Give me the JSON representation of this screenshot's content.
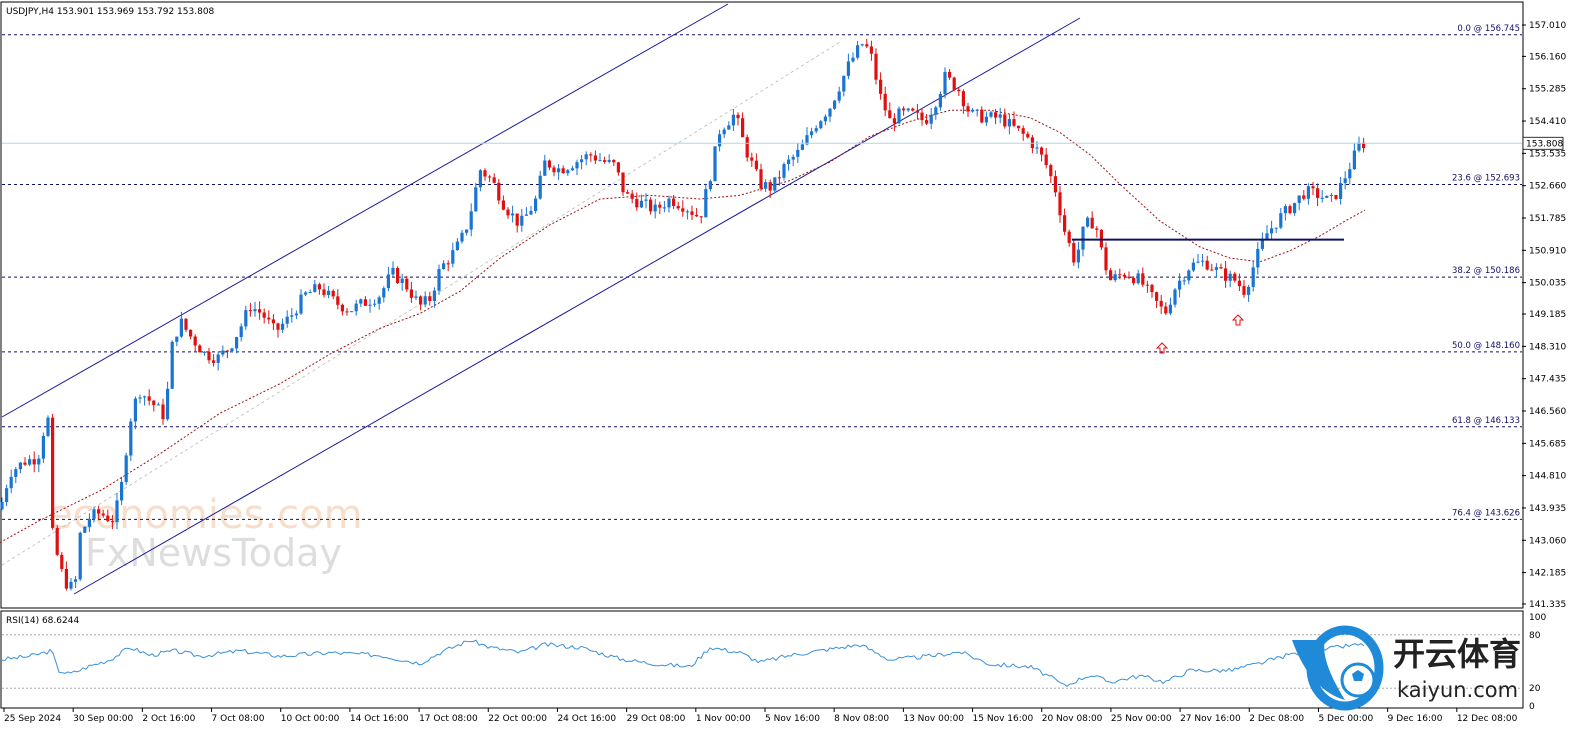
{
  "header": {
    "symbol_line": "USDJPY,H4  153.901 153.969 153.792 153.808"
  },
  "rsi": {
    "title": "RSI(14) 68.6244",
    "levels": [
      "100",
      "80",
      "20",
      "0"
    ]
  },
  "watermark": {
    "line1": "economies.com",
    "line2": "FxNewsToday"
  },
  "logo": {
    "cn": "开云体育",
    "en": "kaiyun.com"
  },
  "colors": {
    "bull": "#1a74d2",
    "bear": "#e01010",
    "channel": "#1a1a9a",
    "ma": "#a01010",
    "fib": "#111166",
    "rsi": "#3a8fd8",
    "price_line": "#a8d8e8"
  },
  "chart_data": {
    "type": "candlestick",
    "symbol": "USDJPY",
    "timeframe": "H4",
    "ohlc_last": {
      "open": 153.901,
      "high": 153.969,
      "low": 153.792,
      "close": 153.808
    },
    "current_price": "153.808",
    "ylim": [
      141.335,
      157.01
    ],
    "y_ticks": [
      "157.010",
      "156.160",
      "155.285",
      "154.410",
      "153.535",
      "152.660",
      "151.785",
      "150.910",
      "150.035",
      "149.185",
      "148.310",
      "147.435",
      "146.560",
      "145.685",
      "144.810",
      "143.935",
      "143.060",
      "142.185",
      "141.335"
    ],
    "x_ticks": [
      "25 Sep 2024",
      "30 Sep 00:00",
      "2 Oct 16:00",
      "7 Oct 08:00",
      "10 Oct 00:00",
      "14 Oct 16:00",
      "17 Oct 08:00",
      "22 Oct 00:00",
      "24 Oct 16:00",
      "29 Oct 08:00",
      "1 Nov 00:00",
      "5 Nov 16:00",
      "8 Nov 08:00",
      "13 Nov 00:00",
      "15 Nov 16:00",
      "20 Nov 08:00",
      "25 Nov 00:00",
      "27 Nov 16:00",
      "2 Dec 08:00",
      "5 Dec 00:00",
      "9 Dec 16:00",
      "12 Dec 08:00"
    ],
    "fib_levels": [
      {
        "label": "0.0 @ 156.745",
        "value": 156.745
      },
      {
        "label": "23.6 @ 152.693",
        "value": 152.693
      },
      {
        "label": "38.2 @ 150.186",
        "value": 150.186
      },
      {
        "label": "50.0 @ 148.160",
        "value": 148.16
      },
      {
        "label": "61.8 @ 146.133",
        "value": 146.133
      },
      {
        "label": "76.4 @ 143.626",
        "value": 143.626
      }
    ],
    "neckline_value": 151.2,
    "price_path": [
      [
        0,
        143.9
      ],
      [
        10,
        144.9
      ],
      [
        25,
        145.2
      ],
      [
        38,
        145.3
      ],
      [
        45,
        146.2
      ],
      [
        50,
        146.4
      ],
      [
        52,
        143.3
      ],
      [
        60,
        142.3
      ],
      [
        68,
        141.8
      ],
      [
        75,
        141.8
      ],
      [
        80,
        143.2
      ],
      [
        90,
        143.7
      ],
      [
        100,
        143.8
      ],
      [
        112,
        143.6
      ],
      [
        120,
        144.2
      ],
      [
        125,
        145.3
      ],
      [
        132,
        146.6
      ],
      [
        140,
        147.1
      ],
      [
        155,
        146.7
      ],
      [
        165,
        146.4
      ],
      [
        172,
        148.3
      ],
      [
        180,
        149.0
      ],
      [
        190,
        148.6
      ],
      [
        205,
        148.1
      ],
      [
        218,
        148.0
      ],
      [
        230,
        148.3
      ],
      [
        240,
        148.8
      ],
      [
        250,
        149.4
      ],
      [
        262,
        149.2
      ],
      [
        275,
        148.7
      ],
      [
        290,
        149.1
      ],
      [
        305,
        149.7
      ],
      [
        320,
        149.9
      ],
      [
        335,
        149.5
      ],
      [
        350,
        149.3
      ],
      [
        365,
        149.5
      ],
      [
        380,
        149.7
      ],
      [
        392,
        150.3
      ],
      [
        405,
        150.0
      ],
      [
        420,
        149.4
      ],
      [
        430,
        149.6
      ],
      [
        440,
        150.4
      ],
      [
        455,
        150.9
      ],
      [
        465,
        151.4
      ],
      [
        472,
        152.1
      ],
      [
        480,
        153.1
      ],
      [
        492,
        152.8
      ],
      [
        505,
        152.1
      ],
      [
        520,
        151.6
      ],
      [
        535,
        152.2
      ],
      [
        545,
        153.3
      ],
      [
        560,
        153.1
      ],
      [
        575,
        153.3
      ],
      [
        590,
        153.5
      ],
      [
        605,
        153.3
      ],
      [
        615,
        153.2
      ],
      [
        625,
        152.4
      ],
      [
        640,
        152.2
      ],
      [
        655,
        152.0
      ],
      [
        670,
        152.3
      ],
      [
        685,
        152.1
      ],
      [
        700,
        151.8
      ],
      [
        710,
        152.9
      ],
      [
        720,
        154.2
      ],
      [
        735,
        154.6
      ],
      [
        745,
        153.7
      ],
      [
        760,
        152.7
      ],
      [
        772,
        152.6
      ],
      [
        785,
        153.2
      ],
      [
        800,
        153.6
      ],
      [
        815,
        154.3
      ],
      [
        830,
        154.8
      ],
      [
        840,
        155.4
      ],
      [
        850,
        156.0
      ],
      [
        862,
        156.5
      ],
      [
        870,
        156.3
      ],
      [
        880,
        155.1
      ],
      [
        890,
        154.4
      ],
      [
        900,
        154.6
      ],
      [
        912,
        154.6
      ],
      [
        925,
        154.4
      ],
      [
        935,
        154.9
      ],
      [
        945,
        155.6
      ],
      [
        958,
        155.3
      ],
      [
        970,
        154.6
      ],
      [
        985,
        154.5
      ],
      [
        1000,
        154.5
      ],
      [
        1015,
        154.2
      ],
      [
        1030,
        153.9
      ],
      [
        1045,
        153.3
      ],
      [
        1055,
        152.6
      ],
      [
        1065,
        151.4
      ],
      [
        1075,
        150.6
      ],
      [
        1085,
        151.6
      ],
      [
        1095,
        151.7
      ],
      [
        1103,
        150.7
      ],
      [
        1110,
        150.1
      ],
      [
        1125,
        150.3
      ],
      [
        1140,
        150.1
      ],
      [
        1150,
        149.7
      ],
      [
        1165,
        149.2
      ],
      [
        1175,
        149.9
      ],
      [
        1190,
        150.5
      ],
      [
        1205,
        150.6
      ],
      [
        1220,
        150.3
      ],
      [
        1235,
        150.1
      ],
      [
        1245,
        149.8
      ],
      [
        1255,
        150.6
      ],
      [
        1265,
        151.3
      ],
      [
        1280,
        151.8
      ],
      [
        1295,
        152.2
      ],
      [
        1305,
        152.5
      ],
      [
        1320,
        152.4
      ],
      [
        1330,
        152.2
      ],
      [
        1340,
        152.6
      ],
      [
        1350,
        153.2
      ],
      [
        1360,
        153.8
      ],
      [
        1365,
        153.8
      ]
    ],
    "ma_path": [
      [
        0,
        143.0
      ],
      [
        40,
        143.6
      ],
      [
        100,
        144.4
      ],
      [
        160,
        145.4
      ],
      [
        220,
        146.5
      ],
      [
        280,
        147.3
      ],
      [
        330,
        148.1
      ],
      [
        380,
        148.8
      ],
      [
        420,
        149.2
      ],
      [
        460,
        149.8
      ],
      [
        500,
        150.7
      ],
      [
        550,
        151.6
      ],
      [
        600,
        152.3
      ],
      [
        650,
        152.4
      ],
      [
        700,
        152.3
      ],
      [
        740,
        152.4
      ],
      [
        790,
        152.8
      ],
      [
        830,
        153.3
      ],
      [
        870,
        154.0
      ],
      [
        910,
        154.4
      ],
      [
        950,
        154.7
      ],
      [
        990,
        154.7
      ],
      [
        1030,
        154.5
      ],
      [
        1060,
        154.1
      ],
      [
        1090,
        153.5
      ],
      [
        1120,
        152.7
      ],
      [
        1160,
        151.7
      ],
      [
        1200,
        151.0
      ],
      [
        1230,
        150.7
      ],
      [
        1260,
        150.6
      ],
      [
        1290,
        150.9
      ],
      [
        1320,
        151.3
      ],
      [
        1345,
        151.7
      ],
      [
        1365,
        152.0
      ]
    ],
    "rsi_path": [
      [
        0,
        52
      ],
      [
        30,
        56
      ],
      [
        52,
        62
      ],
      [
        58,
        40
      ],
      [
        70,
        36
      ],
      [
        90,
        45
      ],
      [
        110,
        52
      ],
      [
        130,
        66
      ],
      [
        150,
        57
      ],
      [
        175,
        62
      ],
      [
        200,
        56
      ],
      [
        240,
        62
      ],
      [
        280,
        56
      ],
      [
        330,
        60
      ],
      [
        380,
        57
      ],
      [
        420,
        48
      ],
      [
        440,
        60
      ],
      [
        470,
        74
      ],
      [
        490,
        66
      ],
      [
        520,
        60
      ],
      [
        545,
        69
      ],
      [
        580,
        66
      ],
      [
        620,
        53
      ],
      [
        650,
        48
      ],
      [
        690,
        44
      ],
      [
        710,
        66
      ],
      [
        740,
        60
      ],
      [
        760,
        49
      ],
      [
        790,
        57
      ],
      [
        830,
        64
      ],
      [
        860,
        69
      ],
      [
        890,
        52
      ],
      [
        930,
        56
      ],
      [
        960,
        61
      ],
      [
        990,
        47
      ],
      [
        1030,
        44
      ],
      [
        1050,
        33
      ],
      [
        1065,
        22
      ],
      [
        1075,
        28
      ],
      [
        1090,
        35
      ],
      [
        1110,
        27
      ],
      [
        1140,
        34
      ],
      [
        1165,
        27
      ],
      [
        1190,
        40
      ],
      [
        1230,
        40
      ],
      [
        1260,
        48
      ],
      [
        1290,
        58
      ],
      [
        1320,
        63
      ],
      [
        1350,
        68
      ],
      [
        1365,
        69
      ]
    ],
    "title": "",
    "xlabel": "",
    "ylabel": ""
  }
}
